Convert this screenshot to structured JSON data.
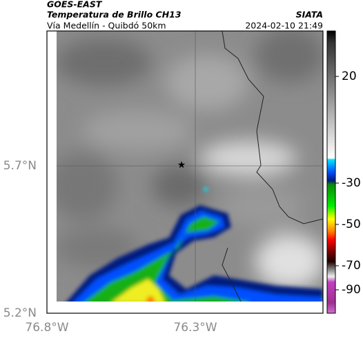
{
  "header": {
    "product": "GOES-EAST",
    "title": "Temperatura de Brillo CH13",
    "region": "Vía Medellín - Quibdó 50km",
    "source": "SIATA",
    "timestamp": "2024-02-10 21:49"
  },
  "map": {
    "lat_ticks": [
      "5.7°N",
      "5.2°N"
    ],
    "lon_ticks": [
      "76.8°W",
      "76.3°W"
    ]
  },
  "colorbar": {
    "ticks": [
      20,
      -30,
      -50,
      -70,
      -90
    ]
  }
}
